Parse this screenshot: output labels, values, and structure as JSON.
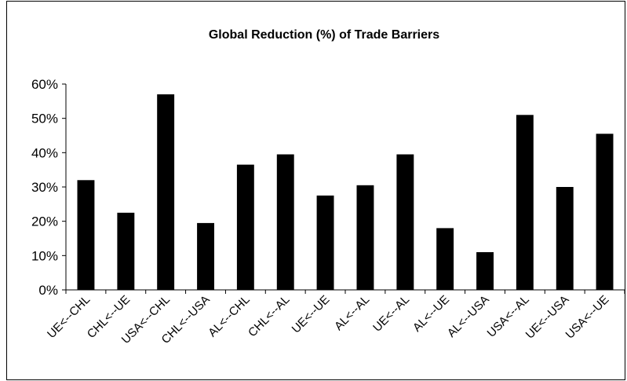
{
  "chart_data": {
    "type": "bar",
    "title": "Global Reduction (%) of Trade Barriers",
    "xlabel": "",
    "ylabel": "",
    "categories": [
      "UE<--CHL",
      "CHL<--UE",
      "USA<--CHL",
      "CHL<--USA",
      "AL<--CHL",
      "CHL<--AL",
      "UE<--UE",
      "AL<--AL",
      "UE<--AL",
      "AL<--UE",
      "AL<--USA",
      "USA<--AL",
      "UE<--USA",
      "USA<--UE"
    ],
    "values": [
      32,
      22.5,
      57,
      19.5,
      36.5,
      39.5,
      27.5,
      30.5,
      39.5,
      18,
      11,
      51,
      30,
      45.5
    ],
    "ylim": [
      0,
      60
    ],
    "yticks": [
      0,
      10,
      20,
      30,
      40,
      50,
      60
    ],
    "ytick_labels": [
      "0%",
      "10%",
      "20%",
      "30%",
      "40%",
      "50%",
      "60%"
    ],
    "grid": false,
    "legend": "none",
    "bar_color": "#000000"
  }
}
